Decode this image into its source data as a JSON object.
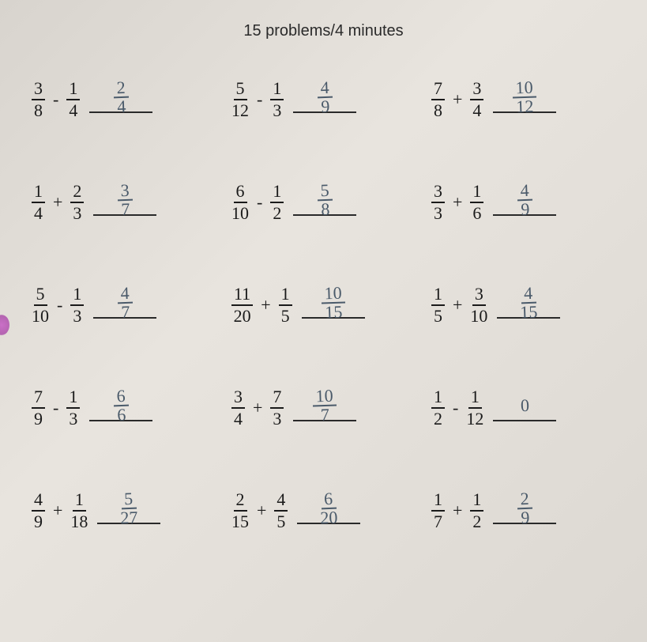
{
  "title": "15 problems/4 minutes",
  "problems": [
    {
      "a_num": "3",
      "a_den": "8",
      "op": "-",
      "b_num": "1",
      "b_den": "4",
      "ans_num": "2",
      "ans_den": "4"
    },
    {
      "a_num": "5",
      "a_den": "12",
      "op": "-",
      "b_num": "1",
      "b_den": "3",
      "ans_num": "4",
      "ans_den": "9"
    },
    {
      "a_num": "7",
      "a_den": "8",
      "op": "+",
      "b_num": "3",
      "b_den": "4",
      "ans_num": "10",
      "ans_den": "12"
    },
    {
      "a_num": "1",
      "a_den": "4",
      "op": "+",
      "b_num": "2",
      "b_den": "3",
      "ans_num": "3",
      "ans_den": "7"
    },
    {
      "a_num": "6",
      "a_den": "10",
      "op": "-",
      "b_num": "1",
      "b_den": "2",
      "ans_num": "5",
      "ans_den": "8"
    },
    {
      "a_num": "3",
      "a_den": "3",
      "op": "+",
      "b_num": "1",
      "b_den": "6",
      "ans_num": "4",
      "ans_den": "9"
    },
    {
      "a_num": "5",
      "a_den": "10",
      "op": "-",
      "b_num": "1",
      "b_den": "3",
      "ans_num": "4",
      "ans_den": "7"
    },
    {
      "a_num": "11",
      "a_den": "20",
      "op": "+",
      "b_num": "1",
      "b_den": "5",
      "ans_num": "10",
      "ans_den": "15"
    },
    {
      "a_num": "1",
      "a_den": "5",
      "op": "+",
      "b_num": "3",
      "b_den": "10",
      "ans_num": "4",
      "ans_den": "15"
    },
    {
      "a_num": "7",
      "a_den": "9",
      "op": "-",
      "b_num": "1",
      "b_den": "3",
      "ans_num": "6",
      "ans_den": "6"
    },
    {
      "a_num": "3",
      "a_den": "4",
      "op": "+",
      "b_num": "7",
      "b_den": "3",
      "ans_num": "10",
      "ans_den": "7"
    },
    {
      "a_num": "1",
      "a_den": "2",
      "op": "-",
      "b_num": "1",
      "b_den": "12",
      "ans_num": "0",
      "ans_den": ""
    },
    {
      "a_num": "4",
      "a_den": "9",
      "op": "+",
      "b_num": "1",
      "b_den": "18",
      "ans_num": "5",
      "ans_den": "27"
    },
    {
      "a_num": "2",
      "a_den": "15",
      "op": "+",
      "b_num": "4",
      "b_den": "5",
      "ans_num": "6",
      "ans_den": "20"
    },
    {
      "a_num": "1",
      "a_den": "7",
      "op": "+",
      "b_num": "1",
      "b_den": "2",
      "ans_num": "2",
      "ans_den": "9"
    }
  ]
}
